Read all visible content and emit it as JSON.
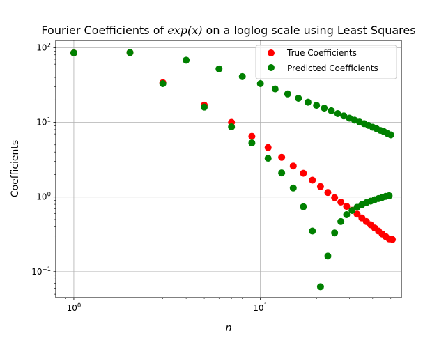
{
  "chart_data": {
    "type": "scatter",
    "title": "Fourier Coefficients of exp(x) on a loglog scale using Least Squares",
    "title_parts": {
      "prefix": "Fourier Coefficients of ",
      "math": "exp(x)",
      "suffix": " on a loglog scale using Least Squares"
    },
    "xlabel": "n",
    "ylabel": "Coefficients",
    "xscale": "log",
    "yscale": "log",
    "xlim": [
      0.8,
      57
    ],
    "ylim": [
      0.045,
      125
    ],
    "x_ticks": [
      1,
      10
    ],
    "x_tick_labels": [
      {
        "base": "10",
        "exp": "0"
      },
      {
        "base": "10",
        "exp": "1"
      }
    ],
    "y_ticks": [
      0.1,
      1,
      10,
      100
    ],
    "y_tick_labels": [
      {
        "base": "10",
        "exp": "−1"
      },
      {
        "base": "10",
        "exp": "0"
      },
      {
        "base": "10",
        "exp": "1"
      },
      {
        "base": "10",
        "exp": "2"
      }
    ],
    "grid": true,
    "legend_position": "top-right",
    "series": [
      {
        "name": "True Coefficients",
        "color": "#ff0000",
        "x": [
          1,
          2,
          3,
          5,
          7,
          9,
          11,
          13,
          15,
          17,
          19,
          21,
          23,
          25,
          27,
          29,
          31,
          33,
          35,
          37,
          39,
          41,
          43,
          45,
          47,
          49,
          51
        ],
        "y": [
          85,
          86,
          34,
          17,
          10,
          6.5,
          4.6,
          3.4,
          2.6,
          2.08,
          1.68,
          1.38,
          1.15,
          0.98,
          0.855,
          0.75,
          0.665,
          0.59,
          0.525,
          0.47,
          0.425,
          0.385,
          0.35,
          0.32,
          0.295,
          0.275,
          0.27
        ]
      },
      {
        "name": "Predicted Coefficients",
        "color": "#008000",
        "x": [
          1,
          2,
          3,
          4,
          5,
          6,
          7,
          8,
          9,
          10,
          11,
          12,
          13,
          14,
          15,
          16,
          17,
          18,
          19,
          20,
          21,
          22,
          23,
          24,
          25,
          26,
          27,
          28,
          29,
          30,
          31,
          32,
          33,
          34,
          35,
          36,
          37,
          38,
          39,
          40,
          41,
          42,
          43,
          44,
          45,
          46,
          47,
          48,
          49,
          50
        ],
        "y": [
          85,
          86,
          33,
          68,
          16,
          52,
          8.7,
          41,
          5.3,
          33,
          3.3,
          28,
          2.1,
          24,
          1.32,
          21,
          0.74,
          18.6,
          0.35,
          16.9,
          0.063,
          15.5,
          0.162,
          14.3,
          0.33,
          13.1,
          0.47,
          12.2,
          0.58,
          11.4,
          0.66,
          10.7,
          0.73,
          10.1,
          0.79,
          9.6,
          0.84,
          9.1,
          0.88,
          8.6,
          0.92,
          8.2,
          0.955,
          7.8,
          0.99,
          7.5,
          1.02,
          7.1,
          1.04,
          6.8
        ]
      }
    ]
  }
}
